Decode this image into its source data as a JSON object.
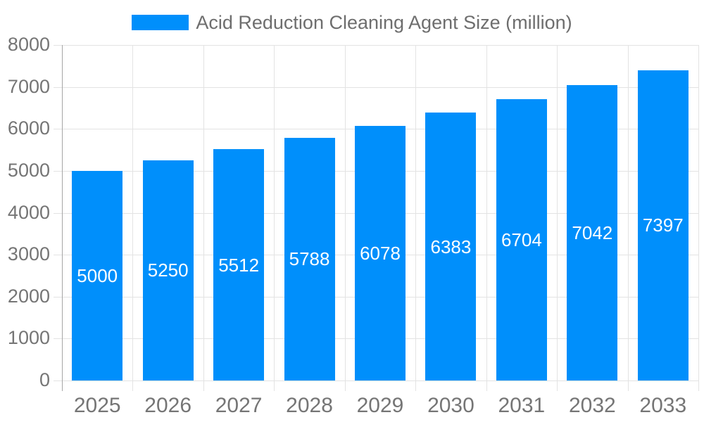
{
  "legend": {
    "label": "Acid Reduction Cleaning Agent Size (million)"
  },
  "chart_data": {
    "type": "bar",
    "title": "Acid Reduction Cleaning Agent Size (million)",
    "series_name": "Acid Reduction Cleaning Agent Size (million)",
    "categories": [
      "2025",
      "2026",
      "2027",
      "2028",
      "2029",
      "2030",
      "2031",
      "2032",
      "2033"
    ],
    "values": [
      5000,
      5250,
      5512,
      5788,
      6078,
      6383,
      6704,
      7042,
      7397
    ],
    "xlabel": "",
    "ylabel": "",
    "ylim": [
      0,
      8000
    ],
    "y_ticks": [
      0,
      1000,
      2000,
      3000,
      4000,
      5000,
      6000,
      7000,
      8000
    ],
    "grid": true,
    "legend_position": "top",
    "value_label_position": "inside-center",
    "colors": {
      "bar": "#008ffb",
      "value_label": "#ffffff",
      "axis_text": "#757575",
      "title_text": "#6e6e6e",
      "gridline": "#e3e3e3",
      "axis_line": "#a6a6a6",
      "background": "#ffffff"
    }
  }
}
